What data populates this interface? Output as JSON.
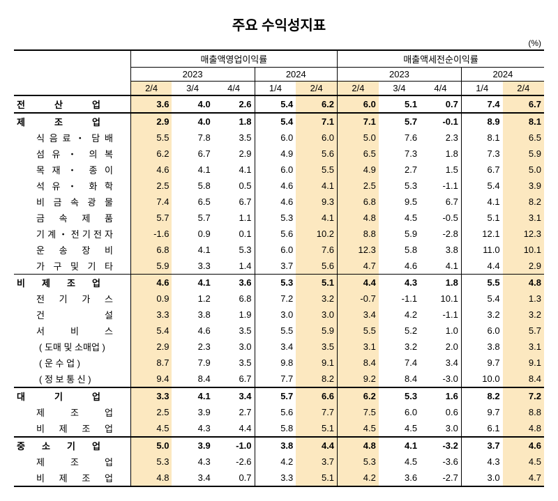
{
  "title": "주요 수익성지표",
  "unit": "(%)",
  "header": {
    "group1": "매출액영업이익률",
    "group2": "매출액세전순이익률",
    "y2023": "2023",
    "y2024": "2024",
    "q": [
      "2/4",
      "3/4",
      "4/4",
      "1/4",
      "2/4",
      "2/4",
      "3/4",
      "4/4",
      "1/4",
      "2/4"
    ]
  },
  "colors": {
    "highlight": "#fce8c0"
  },
  "rows": [
    {
      "label": "전 산 업",
      "indent": 0,
      "bold": true,
      "just": 120,
      "topBorder": "heavy",
      "v": [
        "3.6",
        "4.0",
        "2.6",
        "5.4",
        "6.2",
        "6.0",
        "5.1",
        "0.7",
        "7.4",
        "6.7"
      ]
    },
    {
      "label": "제 조 업",
      "indent": 0,
      "bold": true,
      "just": 120,
      "topBorder": "heavy",
      "v": [
        "2.9",
        "4.0",
        "1.8",
        "5.4",
        "7.1",
        "7.1",
        "5.7",
        "-0.1",
        "8.9",
        "8.1"
      ]
    },
    {
      "label": "식 음 료 ・ 담 배",
      "indent": 1,
      "bold": false,
      "just": 110,
      "v": [
        "5.5",
        "7.8",
        "3.5",
        "6.0",
        "6.0",
        "5.0",
        "7.6",
        "2.3",
        "8.1",
        "6.5"
      ]
    },
    {
      "label": "섬 유 ・ 의 복",
      "indent": 1,
      "bold": false,
      "just": 110,
      "v": [
        "6.2",
        "6.7",
        "2.9",
        "4.9",
        "5.6",
        "6.5",
        "7.3",
        "1.8",
        "7.3",
        "5.9"
      ]
    },
    {
      "label": "목 재 ・ 종 이",
      "indent": 1,
      "bold": false,
      "just": 110,
      "v": [
        "4.6",
        "4.1",
        "4.1",
        "6.0",
        "5.5",
        "4.9",
        "2.7",
        "1.5",
        "6.7",
        "5.0"
      ]
    },
    {
      "label": "석 유 ・ 화 학",
      "indent": 1,
      "bold": false,
      "just": 110,
      "v": [
        "2.5",
        "5.8",
        "0.5",
        "4.6",
        "4.1",
        "2.5",
        "5.3",
        "-1.1",
        "5.4",
        "3.9"
      ]
    },
    {
      "label": "비 금 속 광 물",
      "indent": 1,
      "bold": false,
      "just": 110,
      "v": [
        "7.4",
        "6.5",
        "6.7",
        "4.6",
        "9.3",
        "6.8",
        "9.5",
        "6.7",
        "4.1",
        "8.2"
      ]
    },
    {
      "label": "금 속 제 품",
      "indent": 1,
      "bold": false,
      "just": 110,
      "v": [
        "5.7",
        "5.7",
        "1.1",
        "5.3",
        "4.1",
        "4.8",
        "4.5",
        "-0.5",
        "5.1",
        "3.1"
      ]
    },
    {
      "label": "기 계 ・ 전 기 전 자",
      "indent": 1,
      "bold": false,
      "just": 110,
      "v": [
        "-1.6",
        "0.9",
        "0.1",
        "5.6",
        "10.2",
        "8.8",
        "5.9",
        "-2.8",
        "12.1",
        "12.3"
      ]
    },
    {
      "label": "운 송 장 비",
      "indent": 1,
      "bold": false,
      "just": 110,
      "v": [
        "6.8",
        "4.1",
        "5.3",
        "6.0",
        "7.6",
        "12.3",
        "5.8",
        "3.8",
        "11.0",
        "10.1"
      ]
    },
    {
      "label": "가 구 및 기 타",
      "indent": 1,
      "bold": false,
      "just": 110,
      "v": [
        "5.9",
        "3.3",
        "1.4",
        "3.7",
        "5.6",
        "4.7",
        "4.6",
        "4.1",
        "4.4",
        "2.9"
      ]
    },
    {
      "label": "비 제 조 업",
      "indent": 0,
      "bold": true,
      "just": 120,
      "topBorder": "thin",
      "v": [
        "4.6",
        "4.1",
        "3.6",
        "5.3",
        "5.1",
        "4.4",
        "4.3",
        "1.8",
        "5.5",
        "4.8"
      ]
    },
    {
      "label": "전 기 가 스",
      "indent": 1,
      "bold": false,
      "just": 110,
      "v": [
        "0.9",
        "1.2",
        "6.8",
        "7.2",
        "3.2",
        "-0.7",
        "-1.1",
        "10.1",
        "5.4",
        "1.3"
      ]
    },
    {
      "label": "건 설",
      "indent": 1,
      "bold": false,
      "just": 110,
      "v": [
        "3.3",
        "3.8",
        "1.9",
        "3.0",
        "3.0",
        "3.4",
        "4.2",
        "-1.1",
        "3.2",
        "3.2"
      ]
    },
    {
      "label": "서 비 스",
      "indent": 1,
      "bold": false,
      "just": 110,
      "v": [
        "5.4",
        "4.6",
        "3.5",
        "5.5",
        "5.9",
        "5.5",
        "5.2",
        "1.0",
        "6.0",
        "5.7"
      ]
    },
    {
      "label": "( 도매 및 소매업 )",
      "indent": 2,
      "bold": false,
      "just": 0,
      "v": [
        "2.9",
        "2.3",
        "3.0",
        "3.4",
        "3.5",
        "3.1",
        "3.2",
        "2.0",
        "3.8",
        "3.1"
      ]
    },
    {
      "label": "( 운 수 업 )",
      "indent": 2,
      "bold": false,
      "just": 0,
      "v": [
        "8.7",
        "7.9",
        "3.5",
        "9.8",
        "9.1",
        "8.4",
        "7.4",
        "3.4",
        "9.7",
        "9.1"
      ]
    },
    {
      "label": "( 정 보 통 신 )",
      "indent": 2,
      "bold": false,
      "just": 0,
      "v": [
        "9.4",
        "8.4",
        "6.7",
        "7.7",
        "8.2",
        "9.2",
        "8.4",
        "-3.0",
        "10.0",
        "8.4"
      ]
    },
    {
      "label": "대 기 업",
      "indent": 0,
      "bold": true,
      "just": 120,
      "topBorder": "heavy",
      "v": [
        "3.3",
        "4.1",
        "3.4",
        "5.7",
        "6.6",
        "6.2",
        "5.3",
        "1.6",
        "8.2",
        "7.2"
      ]
    },
    {
      "label": "제 조 업",
      "indent": 1,
      "bold": false,
      "just": 110,
      "v": [
        "2.5",
        "3.9",
        "2.7",
        "5.6",
        "7.7",
        "7.5",
        "6.0",
        "0.6",
        "9.7",
        "8.8"
      ]
    },
    {
      "label": "비 제 조 업",
      "indent": 1,
      "bold": false,
      "just": 110,
      "v": [
        "4.5",
        "4.3",
        "4.4",
        "5.8",
        "5.1",
        "4.5",
        "4.5",
        "3.0",
        "6.1",
        "4.8"
      ]
    },
    {
      "label": "중 소 기 업",
      "indent": 0,
      "bold": true,
      "just": 120,
      "topBorder": "heavy",
      "v": [
        "5.0",
        "3.9",
        "-1.0",
        "3.8",
        "4.4",
        "4.8",
        "4.1",
        "-3.2",
        "3.7",
        "4.6"
      ]
    },
    {
      "label": "제 조 업",
      "indent": 1,
      "bold": false,
      "just": 110,
      "v": [
        "5.3",
        "4.3",
        "-2.6",
        "4.2",
        "3.7",
        "5.3",
        "4.5",
        "-3.6",
        "4.3",
        "4.5"
      ]
    },
    {
      "label": "비 제 조 업",
      "indent": 1,
      "bold": false,
      "just": 110,
      "botBorder": "heavy",
      "v": [
        "4.8",
        "3.4",
        "0.7",
        "3.3",
        "5.1",
        "4.2",
        "3.6",
        "-2.7",
        "3.0",
        "4.7"
      ]
    }
  ]
}
